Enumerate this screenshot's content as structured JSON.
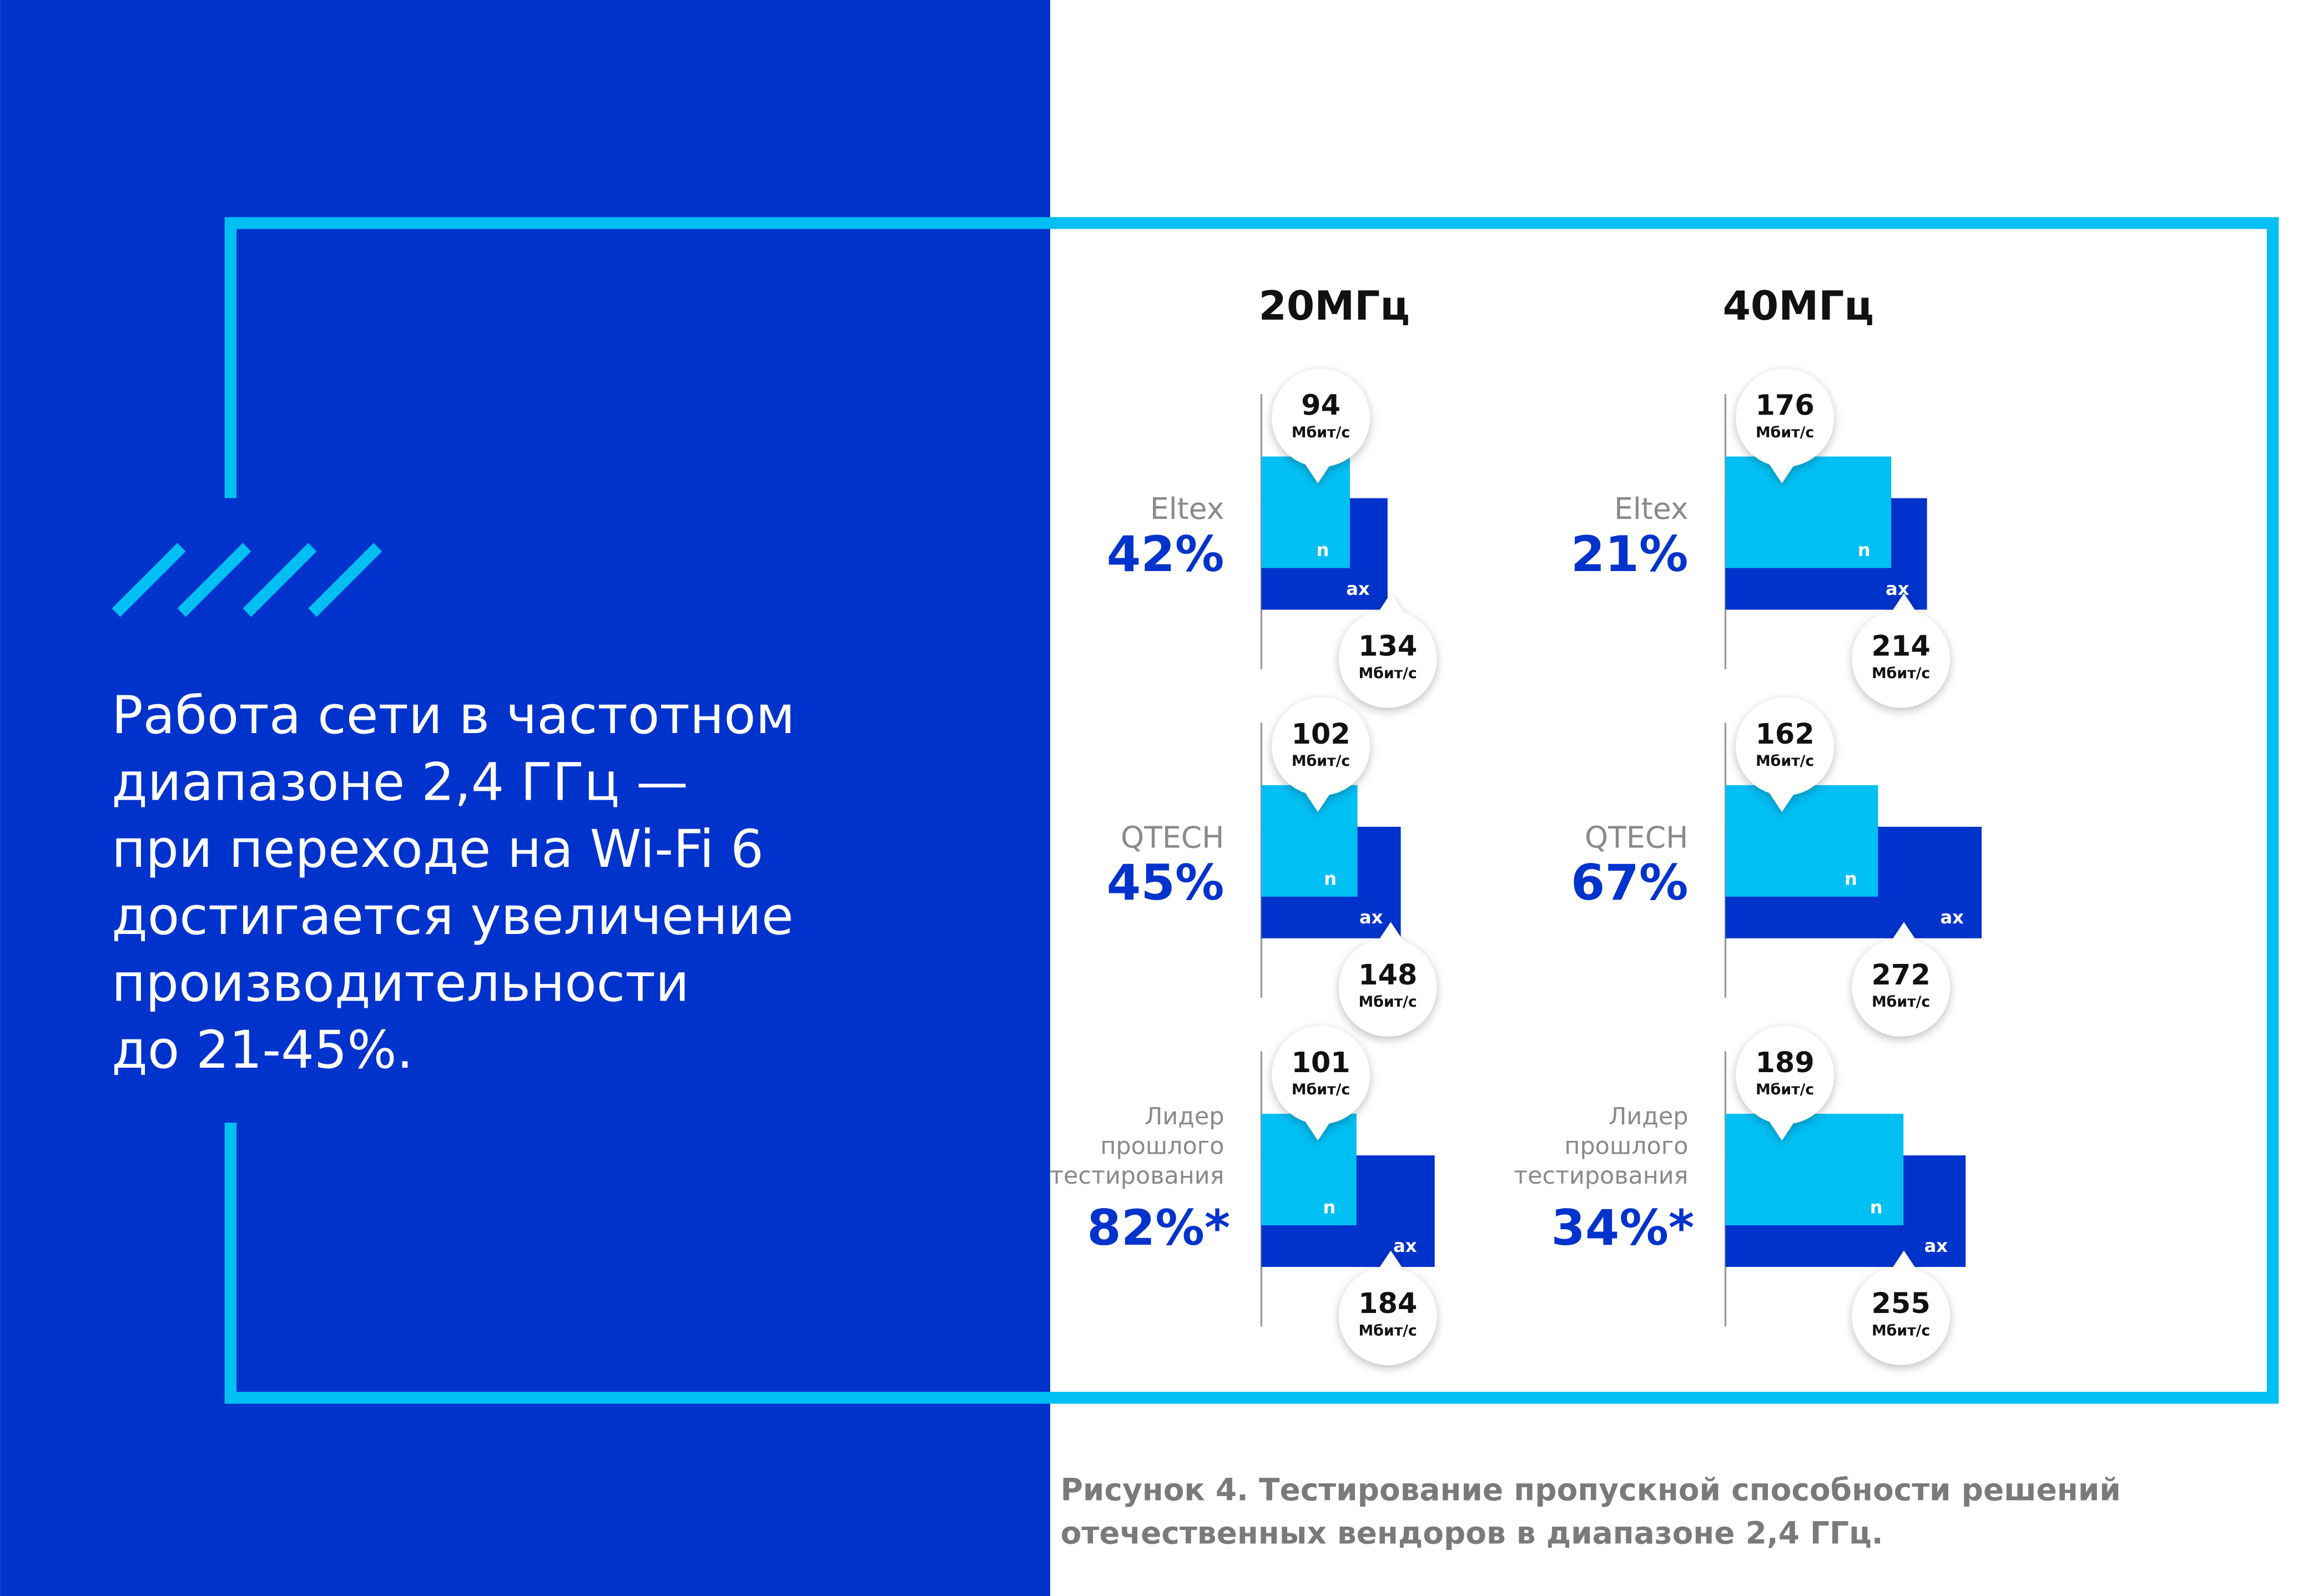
{
  "headline": [
    "Работа сети в частотном",
    "диапазоне 2,4 ГГц —",
    "при переходе на Wi-Fi 6",
    "достигается увеличение",
    "производительности",
    "до 21-45%."
  ],
  "caption": [
    "Рисунок 4. Тестирование пропускной способности решений",
    "отечественных вендоров в диапазоне 2,4 ГГц."
  ],
  "chart_data": [
    {
      "type": "bar",
      "title": "20МГц",
      "categories": [
        "Eltex",
        "QTECH",
        "Лидер прошлого тестирования"
      ],
      "gain_labels": [
        "42%",
        "45%",
        "82%*"
      ],
      "unit": "Мбит/с",
      "xlim": [
        0,
        300
      ],
      "series": [
        {
          "name": "n",
          "color": "#00bff3",
          "values": [
            94,
            102,
            101
          ]
        },
        {
          "name": "ax",
          "color": "#0033cc",
          "values": [
            134,
            148,
            184
          ]
        }
      ]
    },
    {
      "type": "bar",
      "title": "40МГц",
      "categories": [
        "Eltex",
        "QTECH",
        "Лидер прошлого тестирования"
      ],
      "gain_labels": [
        "21%",
        "67%",
        "34%*"
      ],
      "unit": "Мбит/с",
      "xlim": [
        0,
        300
      ],
      "series": [
        {
          "name": "n",
          "color": "#00bff3",
          "values": [
            176,
            162,
            189
          ]
        },
        {
          "name": "ax",
          "color": "#0033cc",
          "values": [
            214,
            272,
            255
          ]
        }
      ]
    }
  ]
}
